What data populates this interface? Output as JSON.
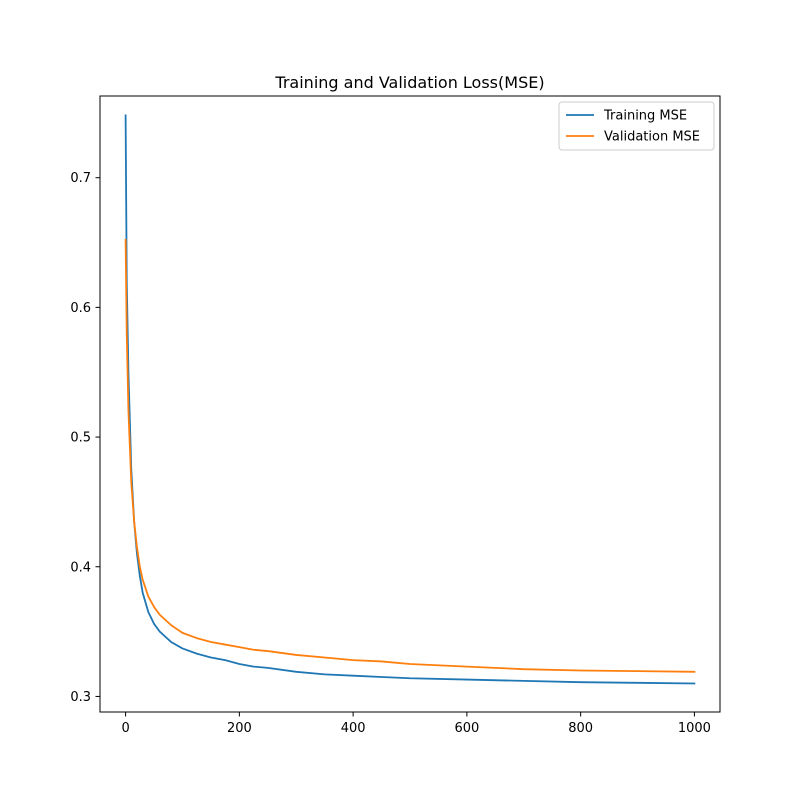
{
  "chart_data": {
    "type": "line",
    "title": "Training and Validation Loss(MSE)",
    "xlabel": "",
    "ylabel": "",
    "xlim": [
      -45,
      1045
    ],
    "ylim": [
      0.288,
      0.763
    ],
    "xticks": [
      0,
      200,
      400,
      600,
      800,
      1000
    ],
    "xtick_labels": [
      "0",
      "200",
      "400",
      "600",
      "800",
      "1000"
    ],
    "yticks": [
      0.3,
      0.4,
      0.5,
      0.6,
      0.7
    ],
    "ytick_labels": [
      "0.3",
      "0.4",
      "0.5",
      "0.6",
      "0.7"
    ],
    "grid": false,
    "legend_position": "top-right",
    "series": [
      {
        "name": "Training MSE",
        "color": "#1f77b4",
        "x": [
          0,
          2,
          5,
          10,
          15,
          20,
          25,
          30,
          40,
          50,
          60,
          80,
          100,
          125,
          150,
          175,
          200,
          225,
          250,
          300,
          350,
          400,
          450,
          500,
          600,
          700,
          800,
          900,
          1000
        ],
        "y": [
          0.748,
          0.62,
          0.55,
          0.475,
          0.435,
          0.41,
          0.393,
          0.38,
          0.365,
          0.356,
          0.35,
          0.342,
          0.337,
          0.333,
          0.33,
          0.328,
          0.325,
          0.323,
          0.322,
          0.319,
          0.317,
          0.316,
          0.315,
          0.314,
          0.313,
          0.312,
          0.311,
          0.3105,
          0.31
        ]
      },
      {
        "name": "Validation MSE",
        "color": "#ff7f0e",
        "x": [
          0,
          2,
          5,
          10,
          15,
          20,
          25,
          30,
          40,
          50,
          60,
          80,
          100,
          125,
          150,
          175,
          200,
          225,
          250,
          300,
          350,
          400,
          450,
          500,
          600,
          700,
          800,
          900,
          1000
        ],
        "y": [
          0.652,
          0.58,
          0.52,
          0.465,
          0.435,
          0.415,
          0.4,
          0.39,
          0.377,
          0.369,
          0.363,
          0.355,
          0.349,
          0.345,
          0.342,
          0.34,
          0.338,
          0.336,
          0.335,
          0.332,
          0.33,
          0.328,
          0.327,
          0.325,
          0.323,
          0.321,
          0.32,
          0.3195,
          0.319
        ]
      }
    ]
  }
}
